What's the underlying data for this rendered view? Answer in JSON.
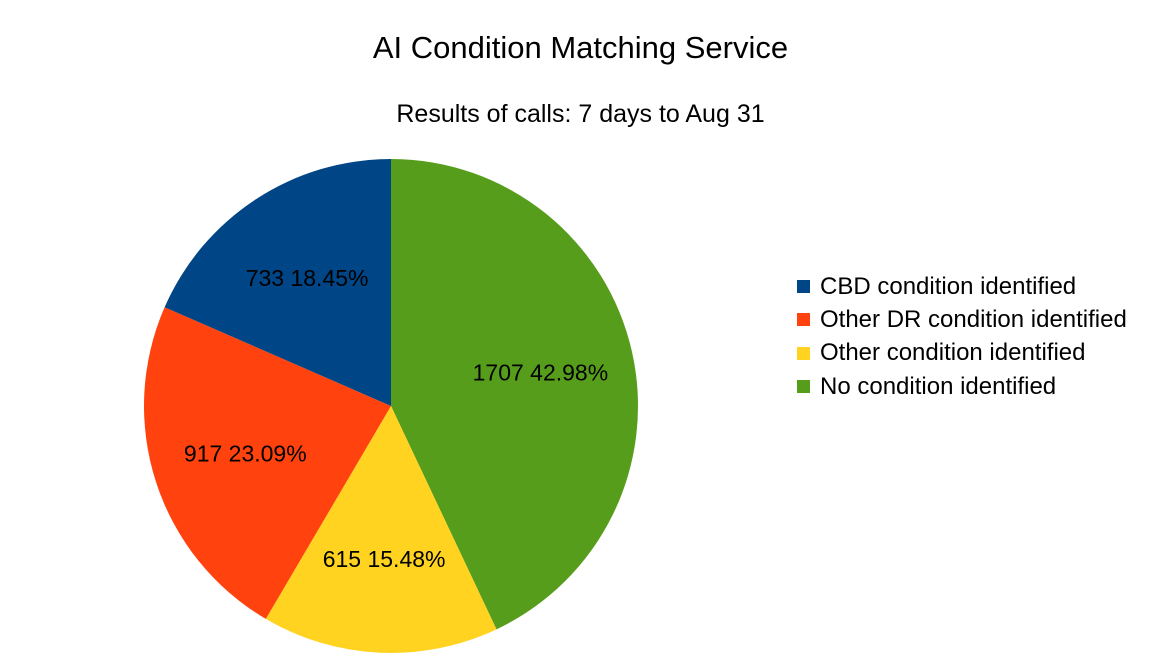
{
  "chart_data": {
    "type": "pie",
    "title": "AI Condition Matching Service",
    "subtitle": "Results of calls: 7 days to Aug 31",
    "slices": [
      {
        "name": "No condition identified",
        "value": 1707,
        "percent": "42.98%",
        "color": "#579d1c"
      },
      {
        "name": "Other condition identified",
        "value": 615,
        "percent": "15.48%",
        "color": "#ffd320"
      },
      {
        "name": "Other DR condition identified",
        "value": 917,
        "percent": "23.09%",
        "color": "#ff420e"
      },
      {
        "name": "CBD condition identified",
        "value": 733,
        "percent": "18.45%",
        "color": "#004586"
      }
    ],
    "legend": {
      "placement": "right",
      "entries": [
        {
          "label": "CBD condition identified",
          "color": "#004586"
        },
        {
          "label": "Other DR condition identified",
          "color": "#ff420e"
        },
        {
          "label": "Other condition identified",
          "color": "#ffd320"
        },
        {
          "label": "No condition identified",
          "color": "#579d1c"
        }
      ]
    }
  }
}
